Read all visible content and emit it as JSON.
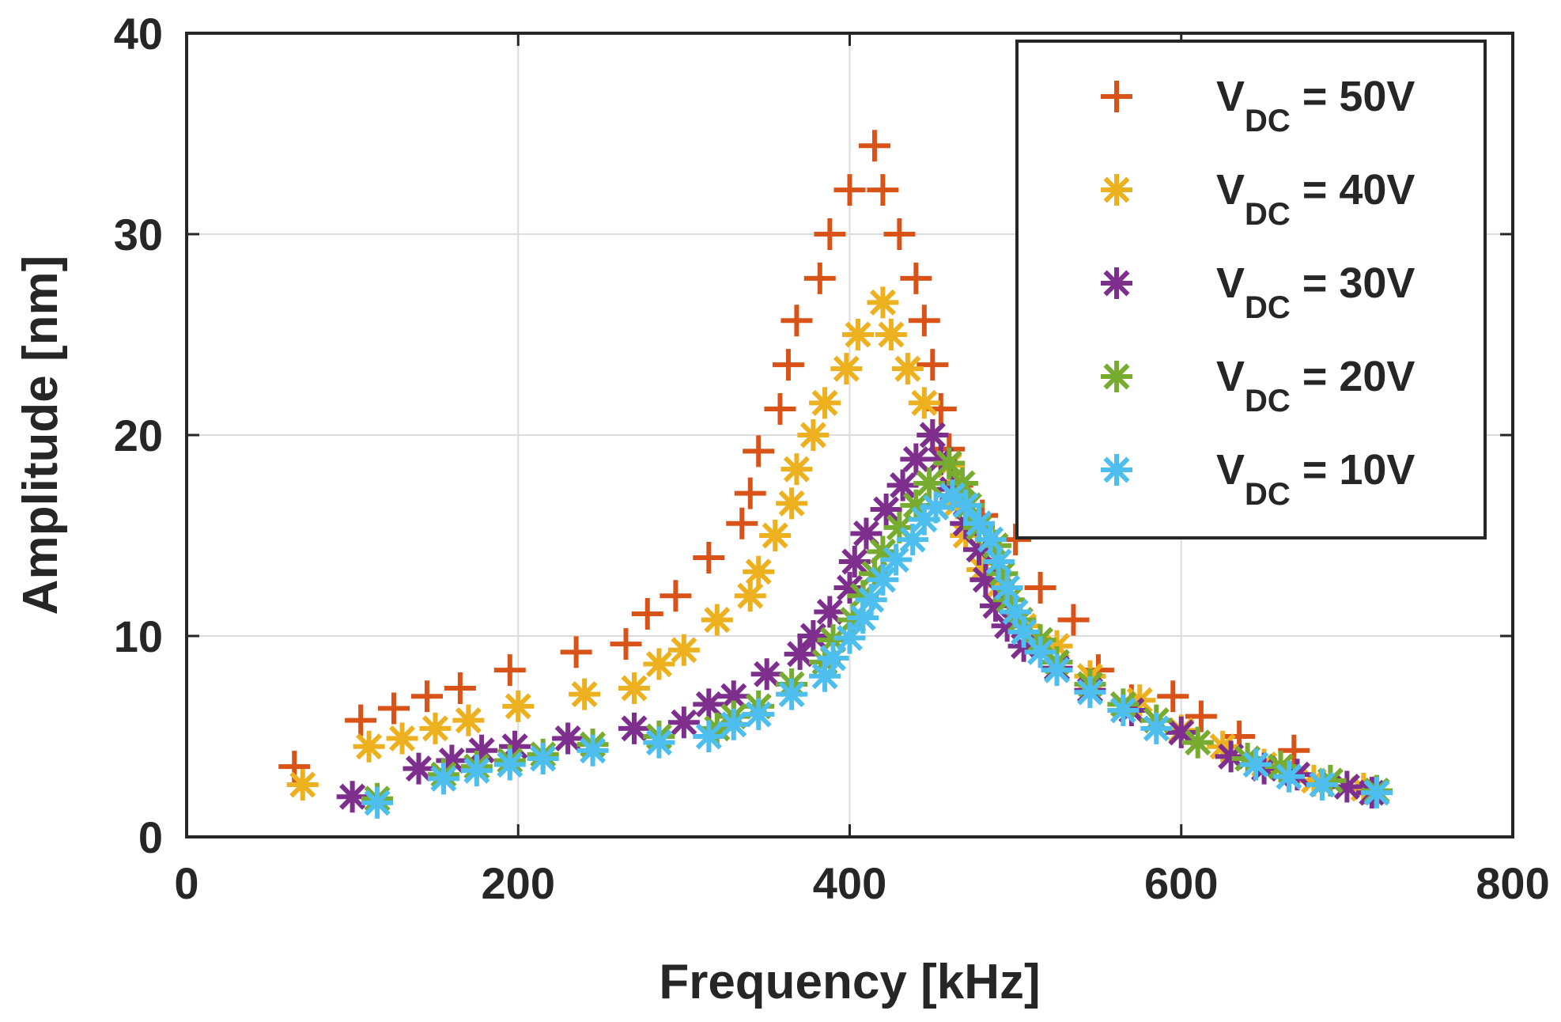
{
  "chart_data": {
    "type": "scatter",
    "title": "",
    "xlabel": "Frequency [kHz]",
    "ylabel": "Amplitude  [nm]",
    "xlim": [
      0,
      800
    ],
    "ylim": [
      0,
      40
    ],
    "xticks": [
      "0",
      "200",
      "400",
      "600",
      "800"
    ],
    "yticks": [
      "0",
      "10",
      "20",
      "30",
      "40"
    ],
    "grid": true,
    "legend_position": "top-right",
    "series": [
      {
        "name": "VDC = 50V",
        "legend_main": "V",
        "legend_sub": "DC",
        "legend_rest": " = 50V",
        "color": "#D95319",
        "marker": "plus",
        "points": [
          [
            65,
            3.5
          ],
          [
            105,
            5.8
          ],
          [
            125,
            6.4
          ],
          [
            145,
            7.0
          ],
          [
            165,
            7.4
          ],
          [
            195,
            8.3
          ],
          [
            235,
            9.2
          ],
          [
            265,
            9.6
          ],
          [
            278,
            11.1
          ],
          [
            295,
            12.0
          ],
          [
            315,
            13.9
          ],
          [
            335,
            15.6
          ],
          [
            340,
            17.1
          ],
          [
            345,
            19.2
          ],
          [
            358,
            21.3
          ],
          [
            363,
            23.5
          ],
          [
            368,
            25.7
          ],
          [
            382,
            27.8
          ],
          [
            388,
            30.0
          ],
          [
            400,
            32.2
          ],
          [
            415,
            34.4
          ],
          [
            420,
            32.2
          ],
          [
            430,
            30.0
          ],
          [
            440,
            27.8
          ],
          [
            445,
            25.7
          ],
          [
            450,
            23.5
          ],
          [
            455,
            21.3
          ],
          [
            460,
            19.3
          ],
          [
            465,
            17.5
          ],
          [
            480,
            16.0
          ],
          [
            500,
            14.8
          ],
          [
            515,
            12.4
          ],
          [
            535,
            10.8
          ],
          [
            550,
            8.3
          ],
          [
            570,
            6.8
          ],
          [
            595,
            7.0
          ],
          [
            612,
            6.0
          ],
          [
            635,
            5.0
          ],
          [
            668,
            4.3
          ]
        ]
      },
      {
        "name": "VDC = 40V",
        "legend_main": "V",
        "legend_sub": "DC",
        "legend_rest": " = 40V",
        "color": "#EDB120",
        "marker": "asterisk",
        "points": [
          [
            70,
            2.6
          ],
          [
            110,
            4.5
          ],
          [
            130,
            4.9
          ],
          [
            150,
            5.4
          ],
          [
            170,
            5.8
          ],
          [
            200,
            6.5
          ],
          [
            240,
            7.1
          ],
          [
            270,
            7.4
          ],
          [
            285,
            8.6
          ],
          [
            300,
            9.3
          ],
          [
            320,
            10.8
          ],
          [
            340,
            12.0
          ],
          [
            345,
            13.2
          ],
          [
            355,
            15.0
          ],
          [
            365,
            16.6
          ],
          [
            368,
            18.3
          ],
          [
            378,
            20.0
          ],
          [
            385,
            21.6
          ],
          [
            398,
            23.3
          ],
          [
            405,
            25.0
          ],
          [
            420,
            26.6
          ],
          [
            425,
            25.0
          ],
          [
            435,
            23.3
          ],
          [
            445,
            21.6
          ],
          [
            450,
            20.0
          ],
          [
            460,
            18.5
          ],
          [
            465,
            16.6
          ],
          [
            470,
            15.0
          ],
          [
            480,
            13.3
          ],
          [
            490,
            12.5
          ],
          [
            505,
            10.5
          ],
          [
            525,
            9.5
          ],
          [
            545,
            8.0
          ],
          [
            575,
            6.8
          ],
          [
            600,
            5.3
          ],
          [
            625,
            4.5
          ],
          [
            650,
            3.6
          ],
          [
            680,
            2.8
          ],
          [
            710,
            2.4
          ]
        ]
      },
      {
        "name": "VDC = 30V",
        "legend_main": "V",
        "legend_sub": "DC",
        "legend_rest": " = 30V",
        "color": "#7E2F8E",
        "marker": "asterisk",
        "points": [
          [
            100,
            2.0
          ],
          [
            140,
            3.4
          ],
          [
            160,
            3.8
          ],
          [
            178,
            4.3
          ],
          [
            198,
            4.5
          ],
          [
            230,
            4.9
          ],
          [
            270,
            5.4
          ],
          [
            300,
            5.7
          ],
          [
            315,
            6.6
          ],
          [
            330,
            7.0
          ],
          [
            350,
            8.1
          ],
          [
            370,
            9.1
          ],
          [
            378,
            10.0
          ],
          [
            388,
            11.2
          ],
          [
            400,
            12.4
          ],
          [
            403,
            13.7
          ],
          [
            410,
            15.1
          ],
          [
            422,
            16.3
          ],
          [
            432,
            17.5
          ],
          [
            440,
            18.8
          ],
          [
            450,
            20.0
          ],
          [
            455,
            18.8
          ],
          [
            462,
            17.3
          ],
          [
            470,
            15.6
          ],
          [
            478,
            14.3
          ],
          [
            482,
            12.8
          ],
          [
            488,
            11.5
          ],
          [
            495,
            10.5
          ],
          [
            505,
            9.5
          ],
          [
            525,
            8.4
          ],
          [
            545,
            7.3
          ],
          [
            570,
            6.3
          ],
          [
            600,
            5.2
          ],
          [
            630,
            4.0
          ],
          [
            650,
            3.4
          ],
          [
            670,
            3.1
          ],
          [
            700,
            2.5
          ],
          [
            715,
            2.2
          ]
        ]
      },
      {
        "name": "VDC = 20V",
        "legend_main": "V",
        "legend_sub": "DC",
        "legend_rest": " = 20V",
        "color": "#77AC30",
        "marker": "asterisk",
        "points": [
          [
            115,
            1.9
          ],
          [
            155,
            3.1
          ],
          [
            175,
            3.5
          ],
          [
            195,
            3.8
          ],
          [
            215,
            4.1
          ],
          [
            245,
            4.6
          ],
          [
            285,
            5.0
          ],
          [
            320,
            5.4
          ],
          [
            330,
            6.0
          ],
          [
            345,
            6.5
          ],
          [
            365,
            7.6
          ],
          [
            385,
            8.7
          ],
          [
            390,
            9.8
          ],
          [
            402,
            10.8
          ],
          [
            408,
            12.0
          ],
          [
            415,
            13.1
          ],
          [
            420,
            14.2
          ],
          [
            430,
            15.4
          ],
          [
            440,
            16.5
          ],
          [
            448,
            17.6
          ],
          [
            460,
            18.6
          ],
          [
            468,
            17.6
          ],
          [
            472,
            16.5
          ],
          [
            478,
            15.4
          ],
          [
            488,
            14.5
          ],
          [
            492,
            13.1
          ],
          [
            496,
            11.8
          ],
          [
            503,
            10.8
          ],
          [
            515,
            9.8
          ],
          [
            525,
            8.7
          ],
          [
            545,
            7.6
          ],
          [
            565,
            6.6
          ],
          [
            585,
            5.8
          ],
          [
            610,
            4.7
          ],
          [
            640,
            3.9
          ],
          [
            660,
            3.5
          ],
          [
            690,
            2.8
          ],
          [
            718,
            2.3
          ]
        ]
      },
      {
        "name": "VDC = 10V",
        "legend_main": "V",
        "legend_sub": "DC",
        "legend_rest": " = 10V",
        "color": "#4DBEEE",
        "marker": "asterisk",
        "points": [
          [
            115,
            1.7
          ],
          [
            155,
            2.9
          ],
          [
            175,
            3.3
          ],
          [
            195,
            3.6
          ],
          [
            215,
            3.9
          ],
          [
            245,
            4.3
          ],
          [
            285,
            4.7
          ],
          [
            315,
            5.0
          ],
          [
            330,
            5.6
          ],
          [
            345,
            6.1
          ],
          [
            365,
            7.1
          ],
          [
            385,
            8.0
          ],
          [
            390,
            8.9
          ],
          [
            400,
            9.9
          ],
          [
            408,
            10.9
          ],
          [
            413,
            11.8
          ],
          [
            420,
            12.8
          ],
          [
            428,
            13.8
          ],
          [
            438,
            14.8
          ],
          [
            445,
            15.8
          ],
          [
            452,
            16.4
          ],
          [
            462,
            17.0
          ],
          [
            470,
            16.5
          ],
          [
            478,
            15.6
          ],
          [
            485,
            14.8
          ],
          [
            490,
            13.7
          ],
          [
            495,
            12.4
          ],
          [
            500,
            11.2
          ],
          [
            505,
            10.2
          ],
          [
            515,
            9.2
          ],
          [
            525,
            8.3
          ],
          [
            545,
            7.2
          ],
          [
            565,
            6.3
          ],
          [
            585,
            5.4
          ],
          [
            645,
            3.6
          ],
          [
            665,
            3.0
          ],
          [
            685,
            2.6
          ],
          [
            718,
            2.2
          ]
        ]
      }
    ]
  }
}
